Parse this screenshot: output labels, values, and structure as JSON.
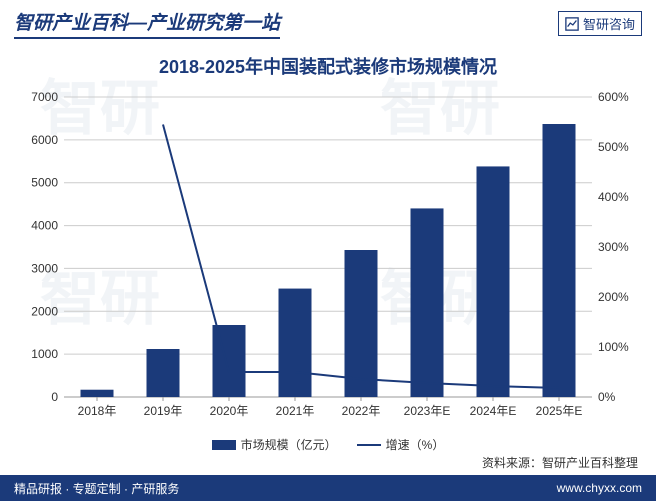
{
  "header": {
    "left_text": "智研产业百科—产业研究第一站",
    "right_text": "智研咨询"
  },
  "chart": {
    "type": "bar+line",
    "title": "2018-2025年中国装配式装修市场规模情况",
    "categories": [
      "2018年",
      "2019年",
      "2020年",
      "2021年",
      "2022年",
      "2023年E",
      "2024年E",
      "2025年E"
    ],
    "bar_series": {
      "name": "市场规模（亿元）",
      "values": [
        170,
        1120,
        1680,
        2530,
        3430,
        4400,
        5380,
        6370
      ],
      "color": "#1b3a7a"
    },
    "line_series": {
      "name": "增速（%）",
      "values": [
        null,
        545,
        50,
        50,
        36,
        28,
        22,
        18
      ],
      "color": "#1b3a7a",
      "width": 2
    },
    "y_left": {
      "min": 0,
      "max": 7000,
      "step": 1000,
      "ticks": [
        0,
        1000,
        2000,
        3000,
        4000,
        5000,
        6000,
        7000
      ]
    },
    "y_right": {
      "min": 0,
      "max": 600,
      "step": 100,
      "ticks": [
        "0%",
        "100%",
        "200%",
        "300%",
        "400%",
        "500%",
        "600%"
      ]
    },
    "grid_color": "#cccccc",
    "axis_color": "#999999",
    "label_color": "#333333",
    "label_fontsize": 12,
    "background": "#ffffff",
    "bar_width_ratio": 0.5
  },
  "legend": {
    "bar_label": "市场规模（亿元）",
    "line_label": "增速（%）"
  },
  "source": {
    "text": "资料来源：智研产业百科整理"
  },
  "footer": {
    "left": "精品研报 · 专题定制 · 产研服务",
    "right": "www.chyxx.com"
  },
  "watermark": {
    "text": "智研",
    "color": "rgba(200,210,225,0.25)"
  }
}
